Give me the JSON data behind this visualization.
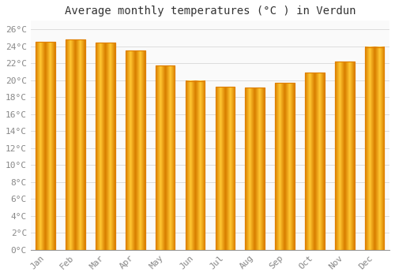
{
  "title": "Average monthly temperatures (°C ) in Verdun",
  "months": [
    "Jan",
    "Feb",
    "Mar",
    "Apr",
    "May",
    "Jun",
    "Jul",
    "Aug",
    "Sep",
    "Oct",
    "Nov",
    "Dec"
  ],
  "values": [
    24.5,
    24.8,
    24.4,
    23.5,
    21.7,
    19.9,
    19.2,
    19.1,
    19.7,
    20.9,
    22.2,
    23.9
  ],
  "bar_color_main": "#FFB300",
  "bar_color_edge": "#E08000",
  "bar_color_light": "#FFD966",
  "background_color": "#FFFFFF",
  "plot_bg_color": "#FAFAFA",
  "grid_color": "#DDDDDD",
  "ytick_step": 2,
  "ymin": 0,
  "ymax": 27,
  "ylabel_suffix": "°C",
  "title_fontsize": 10,
  "tick_fontsize": 8,
  "font_family": "monospace",
  "tick_color": "#888888",
  "bar_width": 0.65
}
